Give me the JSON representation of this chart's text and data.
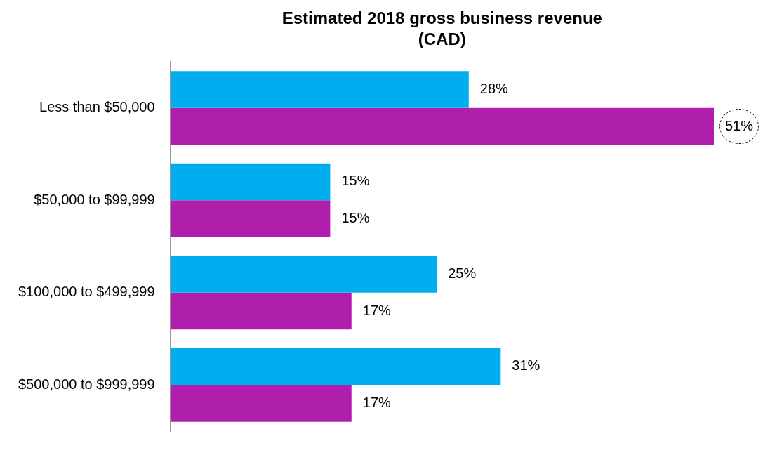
{
  "chart_data": {
    "type": "bar",
    "orientation": "horizontal",
    "title": "Estimated 2018 gross business revenue (CAD)",
    "categories": [
      "Less than $50,000",
      "$50,000 to $99,999",
      "$100,000 to $499,999",
      "$500,000 to $999,999"
    ],
    "xlim": [
      0,
      51
    ],
    "tick_labels": "y",
    "grid": false,
    "legend": false,
    "series": [
      {
        "color": "#00aeef",
        "values": [
          28,
          15,
          25,
          31
        ],
        "value_labels": [
          "28%",
          "15%",
          "25%",
          "31%"
        ]
      },
      {
        "color": "#b01fac",
        "values": [
          51,
          15,
          17,
          17
        ],
        "value_labels": [
          "51%",
          "15%",
          "17%",
          "17%"
        ]
      }
    ]
  }
}
